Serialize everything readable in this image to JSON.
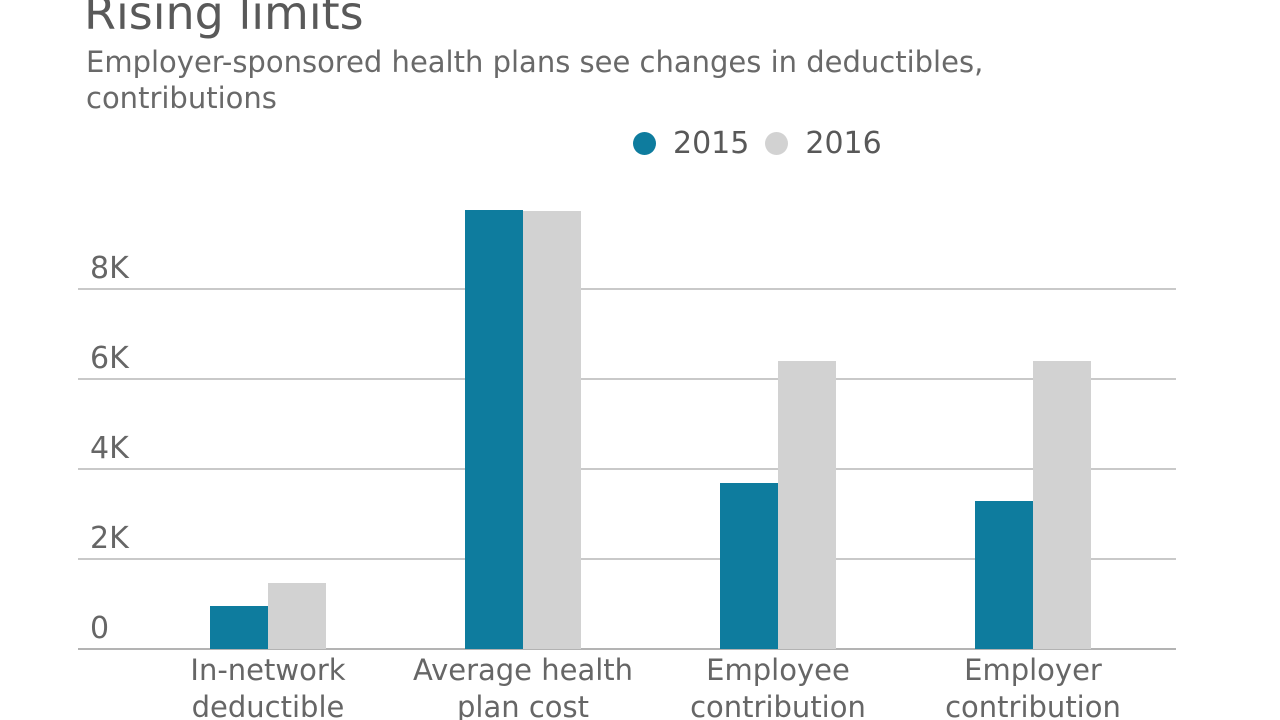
{
  "header": {
    "title": "Rising limits",
    "subtitle_lines": [
      "Employer-sponsored health plans see changes in deductibles,",
      "contributions"
    ]
  },
  "colors": {
    "series_2015": "#0e7c9e",
    "series_2016": "#d2d2d2",
    "title_text": "#595959",
    "secondary_text": "#666666",
    "gridline": "#c9c9c9",
    "zero_line": "#b3b3b3"
  },
  "chart_data": {
    "type": "bar",
    "title": "Rising limits",
    "subtitle": "Employer-sponsored health plans see changes in deductibles, contributions",
    "categories": [
      "In-network deductible",
      "Average health plan cost",
      "Employee contribution",
      "Employer contribution"
    ],
    "category_label_lines": [
      [
        "In-network",
        "deductible"
      ],
      [
        "Average health",
        "plan cost"
      ],
      [
        "Employee",
        "contribution"
      ],
      [
        "Employer",
        "contribution"
      ]
    ],
    "series": [
      {
        "name": "2015",
        "color": "#0e7c9e",
        "values": [
          950,
          9750,
          3700,
          3300
        ]
      },
      {
        "name": "2016",
        "color": "#d2d2d2",
        "values": [
          1475,
          9725,
          6400,
          6400
        ]
      }
    ],
    "yticks": [
      {
        "value": 0,
        "label": "0"
      },
      {
        "value": 2000,
        "label": "2K"
      },
      {
        "value": 4000,
        "label": "4K"
      },
      {
        "value": 6000,
        "label": "6K"
      },
      {
        "value": 8000,
        "label": "8K"
      }
    ],
    "ylim": [
      0,
      9800
    ],
    "grid": true,
    "legend_position": "top-center",
    "legend_labels": [
      "2015",
      "2016"
    ]
  }
}
